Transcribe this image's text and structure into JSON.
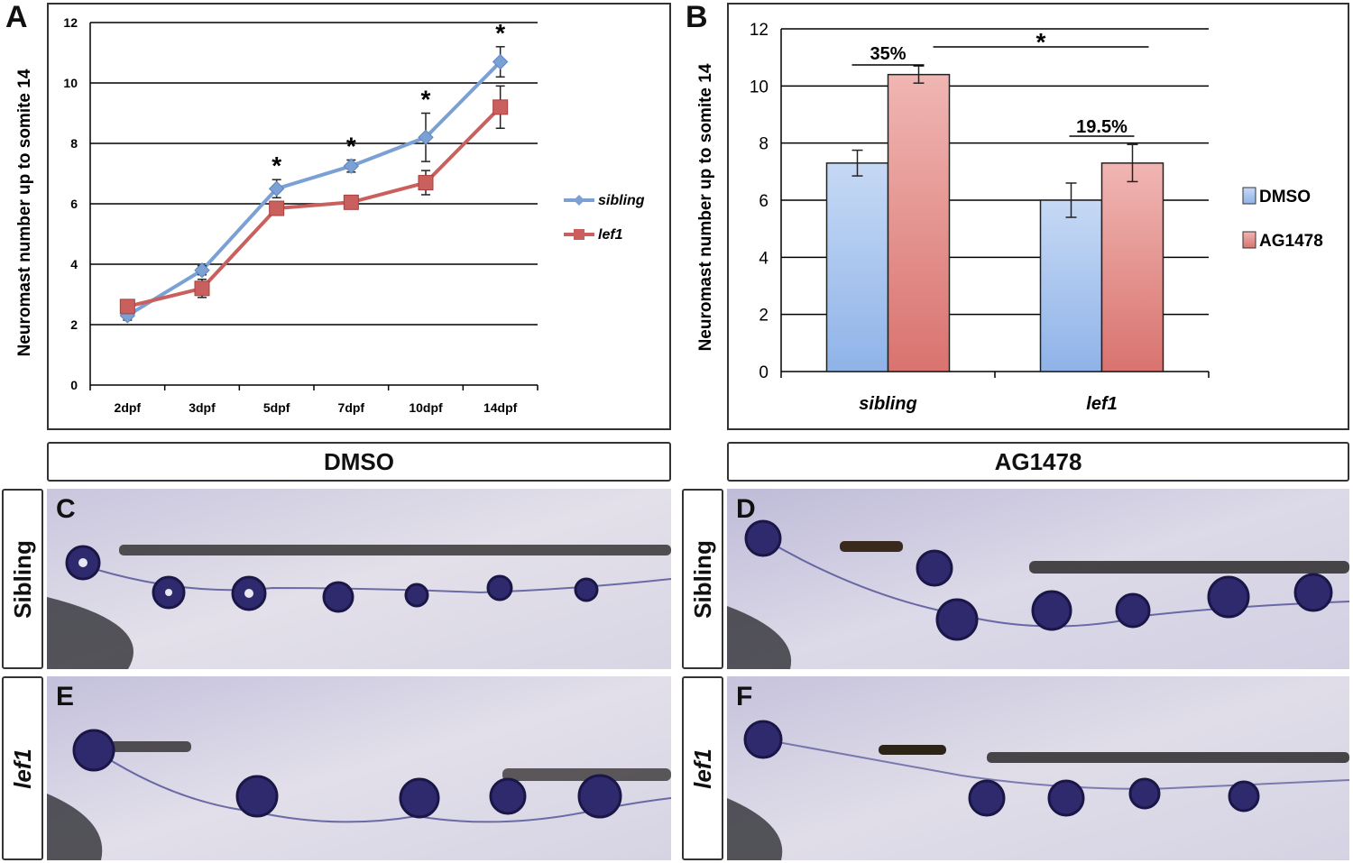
{
  "panel_letters": {
    "a": "A",
    "b": "B",
    "c": "C",
    "d": "D",
    "e": "E",
    "f": "F"
  },
  "chart_data": [
    {
      "type": "line",
      "ylabel": "Neuromast number up to somite 14",
      "categories": [
        "2dpf",
        "3dpf",
        "5dpf",
        "7dpf",
        "10dpf",
        "14dpf"
      ],
      "ylim": [
        0,
        12
      ],
      "yticks": [
        0,
        2,
        4,
        6,
        8,
        10,
        12
      ],
      "grid": true,
      "legend_position": "right",
      "series": [
        {
          "name": "sibling",
          "color": "#7aa0d4",
          "marker": "diamond",
          "values": [
            2.3,
            3.8,
            6.5,
            7.25,
            8.2,
            10.7
          ],
          "errors": [
            0.15,
            0.15,
            0.3,
            0.2,
            0.8,
            0.5
          ]
        },
        {
          "name": "lef1",
          "color": "#c9605e",
          "marker": "square",
          "values": [
            2.6,
            3.2,
            5.85,
            6.05,
            6.7,
            9.2
          ],
          "errors": [
            0.1,
            0.3,
            0.15,
            0.1,
            0.4,
            0.7
          ]
        }
      ],
      "significance": [
        "",
        "",
        "*",
        "*",
        "*",
        "*"
      ]
    },
    {
      "type": "bar",
      "ylabel": "Neuromast number up to somite 14",
      "categories": [
        "sibling",
        "lef1"
      ],
      "ylim": [
        0,
        12
      ],
      "yticks": [
        0,
        2,
        4,
        6,
        8,
        10,
        12
      ],
      "grid": true,
      "legend_position": "right",
      "series": [
        {
          "name": "DMSO",
          "color": "#8fb3e8",
          "values": [
            7.3,
            6.0
          ],
          "errors": [
            0.45,
            0.6
          ]
        },
        {
          "name": "AG1478",
          "color": "#d9736f",
          "values": [
            10.4,
            7.3
          ],
          "errors": [
            0.3,
            0.65
          ]
        }
      ],
      "annotations": {
        "sibling_pct": "35%",
        "lef1_pct": "19.5%",
        "between_groups": "*"
      }
    }
  ],
  "headers": {
    "dmso": "DMSO",
    "ag1478": "AG1478"
  },
  "row_labels": {
    "sibling_left": "Sibling",
    "sibling_right": "Sibling",
    "lef1_left": "lef1",
    "lef1_right": "lef1"
  }
}
